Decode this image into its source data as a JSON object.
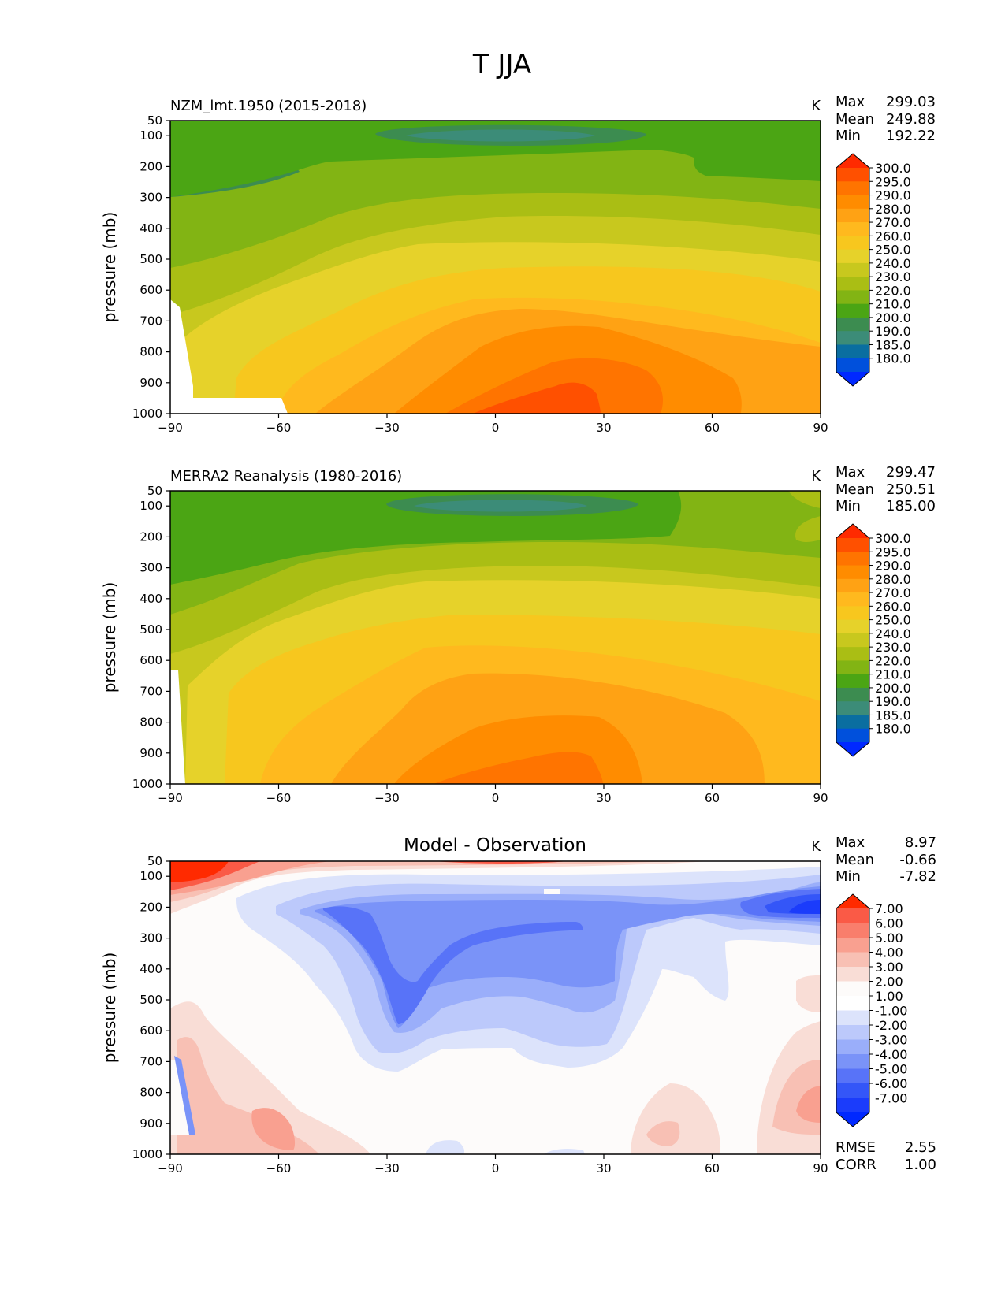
{
  "figure_title": "T JJA",
  "chart_data": [
    {
      "type": "contour",
      "title": "NZM_lmt.1950 (2015-2018)",
      "units": "K",
      "xlabel": "",
      "ylabel": "pressure (mb)",
      "xlim": [
        -90,
        90
      ],
      "ylim": [
        1000,
        50
      ],
      "xticks": [
        "−90",
        "−60",
        "−30",
        "0",
        "30",
        "60",
        "90"
      ],
      "yticks": [
        "50",
        "100",
        "200",
        "300",
        "400",
        "500",
        "600",
        "700",
        "800",
        "900",
        "1000"
      ],
      "stats": {
        "max_label": "Max",
        "max": "299.03",
        "mean_label": "Mean",
        "mean": "249.88",
        "min_label": "Min",
        "min": "192.22"
      },
      "colorbar": {
        "levels": [
          "300.0",
          "295.0",
          "290.0",
          "280.0",
          "270.0",
          "260.0",
          "250.0",
          "240.0",
          "230.0",
          "220.0",
          "210.0",
          "200.0",
          "190.0",
          "185.0",
          "180.0"
        ],
        "colors": [
          "#ff2a00",
          "#ff5000",
          "#ff7400",
          "#ff8c00",
          "#ffa214",
          "#ffb91e",
          "#f7c71e",
          "#e6d22a",
          "#c8c81e",
          "#aabe14",
          "#82b414",
          "#4ba514",
          "#3c8c50",
          "#3c8c78",
          "#0a6ea0",
          "#0050dc",
          "#0028ff"
        ]
      }
    },
    {
      "type": "contour",
      "title": "MERRA2 Reanalysis (1980-2016)",
      "units": "K",
      "xlabel": "",
      "ylabel": "pressure (mb)",
      "xlim": [
        -90,
        90
      ],
      "ylim": [
        1000,
        50
      ],
      "xticks": [
        "−90",
        "−60",
        "−30",
        "0",
        "30",
        "60",
        "90"
      ],
      "yticks": [
        "50",
        "100",
        "200",
        "300",
        "400",
        "500",
        "600",
        "700",
        "800",
        "900",
        "1000"
      ],
      "stats": {
        "max_label": "Max",
        "max": "299.47",
        "mean_label": "Mean",
        "mean": "250.51",
        "min_label": "Min",
        "min": "185.00"
      },
      "colorbar": {
        "levels": [
          "300.0",
          "295.0",
          "290.0",
          "280.0",
          "270.0",
          "260.0",
          "250.0",
          "240.0",
          "230.0",
          "220.0",
          "210.0",
          "200.0",
          "190.0",
          "185.0",
          "180.0"
        ],
        "colors": [
          "#ff2a00",
          "#ff5000",
          "#ff7400",
          "#ff8c00",
          "#ffa214",
          "#ffb91e",
          "#f7c71e",
          "#e6d22a",
          "#c8c81e",
          "#aabe14",
          "#82b414",
          "#4ba514",
          "#3c8c50",
          "#3c8c78",
          "#0a6ea0",
          "#0050dc",
          "#0028ff"
        ]
      }
    },
    {
      "type": "contour",
      "title": "Model - Observation",
      "units": "K",
      "xlabel": "",
      "ylabel": "pressure (mb)",
      "xlim": [
        -90,
        90
      ],
      "ylim": [
        1000,
        50
      ],
      "xticks": [
        "−90",
        "−60",
        "−30",
        "0",
        "30",
        "60",
        "90"
      ],
      "yticks": [
        "50",
        "100",
        "200",
        "300",
        "400",
        "500",
        "600",
        "700",
        "800",
        "900",
        "1000"
      ],
      "stats": {
        "max_label": "Max",
        "max": "8.97",
        "mean_label": "Mean",
        "mean": "-0.66",
        "min_label": "Min",
        "min": "-7.82"
      },
      "extra_stats": {
        "rmse_label": "RMSE",
        "rmse": "2.55",
        "corr_label": "CORR",
        "corr": "1.00"
      },
      "colorbar": {
        "levels": [
          "7.00",
          "6.00",
          "5.00",
          "4.00",
          "3.00",
          "2.00",
          "1.00",
          "-1.00",
          "-2.00",
          "-3.00",
          "-4.00",
          "-5.00",
          "-6.00",
          "-7.00"
        ],
        "colors": [
          "#ff2a00",
          "#fa5a46",
          "#f97e6c",
          "#f9a090",
          "#f8c0b4",
          "#f9ddd6",
          "#fdfbfa",
          "#ffffff",
          "#dce3fb",
          "#bcc9fb",
          "#9aaefa",
          "#7a93f8",
          "#5873f8",
          "#3456f8",
          "#1b3cfb",
          "#0028ff"
        ]
      }
    }
  ]
}
